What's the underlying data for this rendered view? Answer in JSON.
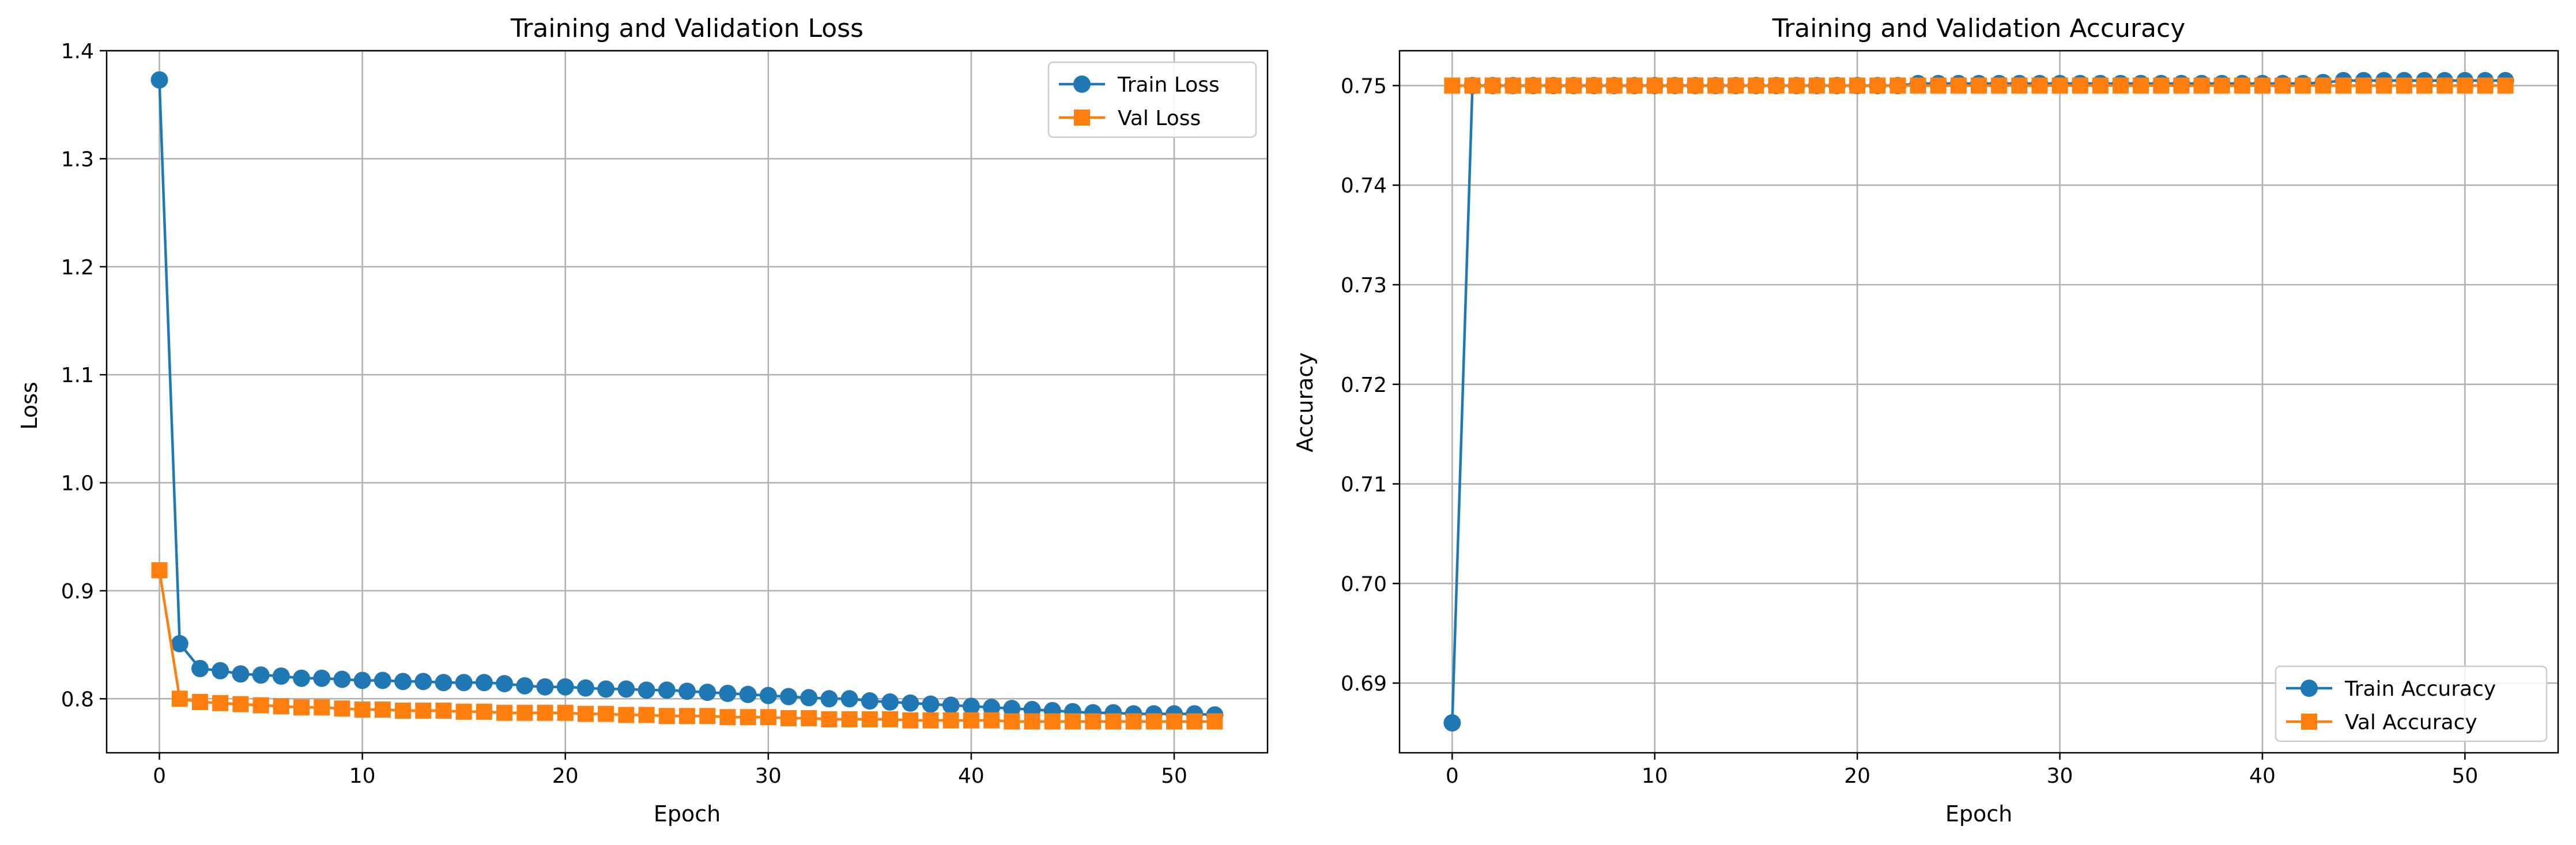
{
  "chart_data": [
    {
      "type": "line",
      "title": "Training and Validation Loss",
      "xlabel": "Epoch",
      "ylabel": "Loss",
      "xlim": [
        -2.6,
        54.6
      ],
      "ylim": [
        0.75,
        1.4
      ],
      "xticks": [
        0,
        10,
        20,
        30,
        40,
        50
      ],
      "yticks": [
        0.8,
        0.9,
        1.0,
        1.1,
        1.2,
        1.3,
        1.4
      ],
      "grid": true,
      "legend": "top-right",
      "x": [
        0,
        1,
        2,
        3,
        4,
        5,
        6,
        7,
        8,
        9,
        10,
        11,
        12,
        13,
        14,
        15,
        16,
        17,
        18,
        19,
        20,
        21,
        22,
        23,
        24,
        25,
        26,
        27,
        28,
        29,
        30,
        31,
        32,
        33,
        34,
        35,
        36,
        37,
        38,
        39,
        40,
        41,
        42,
        43,
        44,
        45,
        46,
        47,
        48,
        49,
        50,
        51,
        52
      ],
      "series": [
        {
          "name": "Train Loss",
          "color": "#1f77b4",
          "marker": "circle",
          "values": [
            1.373,
            0.851,
            0.828,
            0.826,
            0.823,
            0.822,
            0.821,
            0.819,
            0.819,
            0.818,
            0.817,
            0.817,
            0.816,
            0.816,
            0.815,
            0.815,
            0.815,
            0.814,
            0.812,
            0.811,
            0.811,
            0.81,
            0.809,
            0.809,
            0.808,
            0.808,
            0.807,
            0.806,
            0.805,
            0.804,
            0.803,
            0.802,
            0.801,
            0.8,
            0.8,
            0.798,
            0.797,
            0.796,
            0.795,
            0.794,
            0.793,
            0.792,
            0.791,
            0.79,
            0.789,
            0.788,
            0.787,
            0.787,
            0.786,
            0.786,
            0.786,
            0.786,
            0.785
          ]
        },
        {
          "name": "Val Loss",
          "color": "#ff7f0e",
          "marker": "square",
          "values": [
            0.919,
            0.8,
            0.797,
            0.796,
            0.795,
            0.794,
            0.793,
            0.792,
            0.792,
            0.791,
            0.79,
            0.79,
            0.789,
            0.789,
            0.789,
            0.788,
            0.788,
            0.787,
            0.787,
            0.787,
            0.787,
            0.786,
            0.786,
            0.785,
            0.785,
            0.784,
            0.784,
            0.784,
            0.783,
            0.783,
            0.783,
            0.782,
            0.782,
            0.781,
            0.781,
            0.781,
            0.781,
            0.78,
            0.78,
            0.78,
            0.78,
            0.78,
            0.779,
            0.779,
            0.779,
            0.779,
            0.779,
            0.779,
            0.779,
            0.779,
            0.779,
            0.779,
            0.779
          ]
        }
      ]
    },
    {
      "type": "line",
      "title": "Training and Validation Accuracy",
      "xlabel": "Epoch",
      "ylabel": "Accuracy",
      "xlim": [
        -2.6,
        54.6
      ],
      "ylim": [
        0.683,
        0.7535
      ],
      "xticks": [
        0,
        10,
        20,
        30,
        40,
        50
      ],
      "yticks": [
        0.69,
        0.7,
        0.71,
        0.72,
        0.73,
        0.74,
        0.75
      ],
      "grid": true,
      "legend": "bottom-right",
      "x": [
        0,
        1,
        2,
        3,
        4,
        5,
        6,
        7,
        8,
        9,
        10,
        11,
        12,
        13,
        14,
        15,
        16,
        17,
        18,
        19,
        20,
        21,
        22,
        23,
        24,
        25,
        26,
        27,
        28,
        29,
        30,
        31,
        32,
        33,
        34,
        35,
        36,
        37,
        38,
        39,
        40,
        41,
        42,
        43,
        44,
        45,
        46,
        47,
        48,
        49,
        50,
        51,
        52
      ],
      "series": [
        {
          "name": "Train Accuracy",
          "color": "#1f77b4",
          "marker": "circle",
          "values": [
            0.686,
            0.75,
            0.75,
            0.75,
            0.75,
            0.75,
            0.75,
            0.75,
            0.75,
            0.75,
            0.75,
            0.75,
            0.75,
            0.75,
            0.75,
            0.75,
            0.75,
            0.75,
            0.75,
            0.75,
            0.75,
            0.75,
            0.75,
            0.7502,
            0.7502,
            0.7502,
            0.7502,
            0.7502,
            0.7502,
            0.7502,
            0.7502,
            0.7502,
            0.7502,
            0.7502,
            0.7502,
            0.7502,
            0.7502,
            0.7502,
            0.7502,
            0.7502,
            0.7502,
            0.7502,
            0.7502,
            0.7503,
            0.7505,
            0.7505,
            0.7505,
            0.7505,
            0.7505,
            0.7505,
            0.7505,
            0.7505,
            0.7505
          ]
        },
        {
          "name": "Val Accuracy",
          "color": "#ff7f0e",
          "marker": "square",
          "values": [
            0.75,
            0.75,
            0.75,
            0.75,
            0.75,
            0.75,
            0.75,
            0.75,
            0.75,
            0.75,
            0.75,
            0.75,
            0.75,
            0.75,
            0.75,
            0.75,
            0.75,
            0.75,
            0.75,
            0.75,
            0.75,
            0.75,
            0.75,
            0.75,
            0.75,
            0.75,
            0.75,
            0.75,
            0.75,
            0.75,
            0.75,
            0.75,
            0.75,
            0.75,
            0.75,
            0.75,
            0.75,
            0.75,
            0.75,
            0.75,
            0.75,
            0.75,
            0.75,
            0.75,
            0.75,
            0.75,
            0.75,
            0.75,
            0.75,
            0.75,
            0.75,
            0.75,
            0.75
          ]
        }
      ]
    }
  ]
}
